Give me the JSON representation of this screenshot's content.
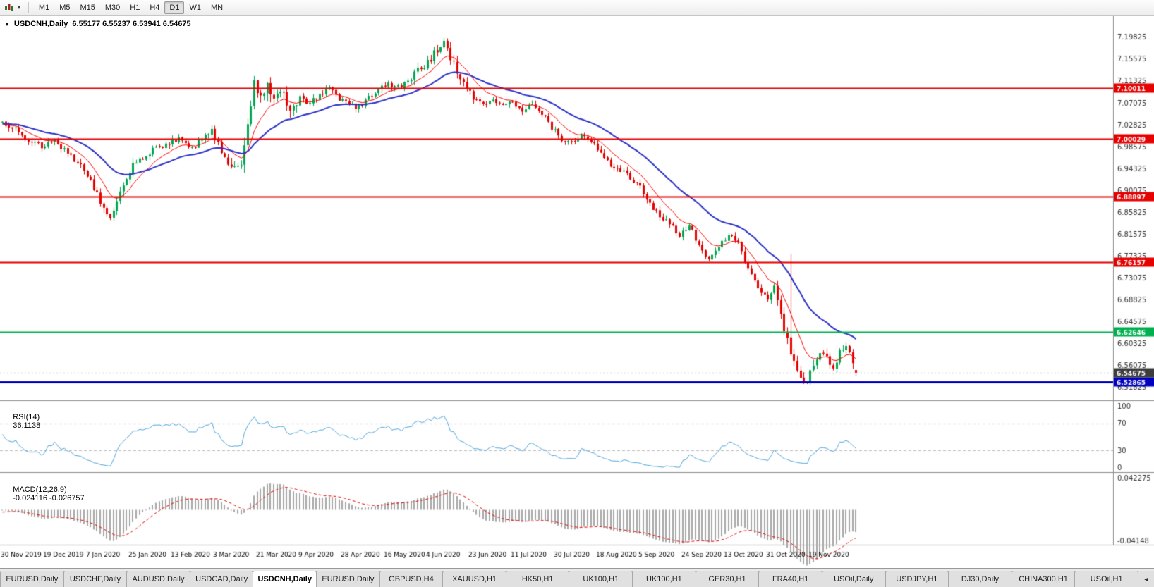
{
  "toolbar": {
    "timeframes": [
      "M1",
      "M5",
      "M15",
      "M30",
      "H1",
      "H4",
      "D1",
      "W1",
      "MN"
    ],
    "active_timeframe": "D1"
  },
  "chart": {
    "collapse_glyph": "▼",
    "title": "USDCNH,Daily",
    "ohlc_text": "6.55177 6.55237 6.53941 6.54675"
  },
  "indicator_labels": {
    "rsi_label": "RSI(14)",
    "rsi_value": "36.1138",
    "macd_label": "MACD(12,26,9)",
    "macd_values": "-0.024116 -0.026757"
  },
  "chart_data": {
    "type": "candlestick",
    "symbol": "USDCNH",
    "period": "Daily",
    "ohlc_current": {
      "open": 6.55177,
      "high": 6.55237,
      "low": 6.53941,
      "close": 6.54675
    },
    "current_price": 6.54675,
    "bars_visible": 262,
    "y_axis": {
      "min": 6.5,
      "max": 7.235,
      "ticks": [
        7.19825,
        7.15575,
        7.11325,
        7.07075,
        7.02825,
        6.98575,
        6.94325,
        6.90075,
        6.85825,
        6.81575,
        6.77325,
        6.73075,
        6.68825,
        6.64575,
        6.60325,
        6.56075,
        6.51825
      ]
    },
    "x_labels": [
      "30 Nov 2019",
      "19 Dec 2019",
      "7 Jan 2020",
      "25 Jan 2020",
      "13 Feb 2020",
      "3 Mar 2020",
      "21 Mar 2020",
      "9 Apr 2020",
      "28 Apr 2020",
      "16 May 2020",
      "4 Jun 2020",
      "23 Jun 2020",
      "11 Jul 2020",
      "30 Jul 2020",
      "18 Aug 2020",
      "5 Sep 2020",
      "24 Sep 2020",
      "13 Oct 2020",
      "31 Oct 2020",
      "19 Nov 2020"
    ],
    "x_label_step_bars": 13,
    "horizontal_lines": [
      {
        "price": 7.10011,
        "color": "#e60000",
        "width": 2,
        "role": "resistance"
      },
      {
        "price": 7.00029,
        "color": "#e60000",
        "width": 2,
        "role": "resistance"
      },
      {
        "price": 6.88897,
        "color": "#e60000",
        "width": 2,
        "role": "resistance"
      },
      {
        "price": 6.76157,
        "color": "#e60000",
        "width": 2,
        "role": "resistance"
      },
      {
        "price": 6.62646,
        "color": "#00b050",
        "width": 2,
        "role": "support"
      },
      {
        "price": 6.52865,
        "color": "#0000c0",
        "width": 3,
        "role": "support"
      }
    ],
    "colors": {
      "up": "#00a651",
      "down": "#e60000",
      "axis_text": "#333333",
      "current_tag_bg": "#3d3d3d",
      "rsi_line": "#4da6dd",
      "rsi_guide": "#bbbbbb",
      "macd_hist": "#a8a8a8",
      "macd_signal": "#e60000",
      "separator": "#8c8c8c"
    },
    "moving_averages": [
      {
        "period": 10,
        "color": "#ff0000",
        "width": 1
      },
      {
        "period": 30,
        "color": "#2b32c8",
        "width": 2
      }
    ],
    "indicators": {
      "rsi": {
        "period": 14,
        "current": 36.1138,
        "scale_labels": [
          100,
          70,
          30,
          0
        ],
        "guides": [
          70,
          30
        ]
      },
      "macd": {
        "fast": 12,
        "slow": 26,
        "signal": 9,
        "current_macd": -0.024116,
        "current_signal": -0.026757,
        "axis_labels": [
          "0.042275",
          "-0.04148"
        ],
        "y_max": 0.042275,
        "y_min": -0.04148
      }
    },
    "price_path_anchors": [
      [
        -60,
        7.078
      ],
      [
        -45,
        7.058
      ],
      [
        -30,
        7.034
      ],
      [
        -15,
        7.022
      ],
      [
        -5,
        7.028
      ],
      [
        0,
        7.032
      ],
      [
        4,
        7.022
      ],
      [
        8,
        6.998
      ],
      [
        12,
        6.988
      ],
      [
        16,
        7.0
      ],
      [
        20,
        6.972
      ],
      [
        24,
        6.946
      ],
      [
        28,
        6.906
      ],
      [
        31,
        6.862
      ],
      [
        33,
        6.852
      ],
      [
        36,
        6.9
      ],
      [
        39,
        6.94
      ],
      [
        42,
        6.962
      ],
      [
        46,
        6.978
      ],
      [
        50,
        6.992
      ],
      [
        54,
        7.002
      ],
      [
        58,
        6.982
      ],
      [
        61,
        7.004
      ],
      [
        64,
        7.016
      ],
      [
        67,
        6.978
      ],
      [
        70,
        6.942
      ],
      [
        73,
        6.958
      ],
      [
        75,
        7.03
      ],
      [
        77,
        7.11
      ],
      [
        79,
        7.082
      ],
      [
        81,
        7.104
      ],
      [
        83,
        7.072
      ],
      [
        85,
        7.092
      ],
      [
        88,
        7.062
      ],
      [
        91,
        7.082
      ],
      [
        94,
        7.068
      ],
      [
        97,
        7.088
      ],
      [
        100,
        7.096
      ],
      [
        103,
        7.078
      ],
      [
        106,
        7.068
      ],
      [
        109,
        7.062
      ],
      [
        112,
        7.08
      ],
      [
        115,
        7.098
      ],
      [
        118,
        7.108
      ],
      [
        121,
        7.1
      ],
      [
        124,
        7.118
      ],
      [
        127,
        7.134
      ],
      [
        130,
        7.15
      ],
      [
        133,
        7.172
      ],
      [
        135,
        7.192
      ],
      [
        137,
        7.158
      ],
      [
        139,
        7.13
      ],
      [
        141,
        7.108
      ],
      [
        144,
        7.082
      ],
      [
        147,
        7.068
      ],
      [
        150,
        7.082
      ],
      [
        153,
        7.062
      ],
      [
        156,
        7.072
      ],
      [
        159,
        7.058
      ],
      [
        162,
        7.068
      ],
      [
        165,
        7.052
      ],
      [
        168,
        7.022
      ],
      [
        171,
        7.002
      ],
      [
        174,
        6.992
      ],
      [
        177,
        7.006
      ],
      [
        180,
        6.996
      ],
      [
        183,
        6.972
      ],
      [
        186,
        6.952
      ],
      [
        189,
        6.942
      ],
      [
        192,
        6.922
      ],
      [
        195,
        6.905
      ],
      [
        198,
        6.872
      ],
      [
        201,
        6.852
      ],
      [
        204,
        6.838
      ],
      [
        207,
        6.812
      ],
      [
        210,
        6.835
      ],
      [
        213,
        6.792
      ],
      [
        216,
        6.768
      ],
      [
        219,
        6.788
      ],
      [
        222,
        6.818
      ],
      [
        225,
        6.795
      ],
      [
        228,
        6.752
      ],
      [
        230,
        6.725
      ],
      [
        232,
        6.705
      ],
      [
        234,
        6.692
      ],
      [
        236,
        6.715
      ],
      [
        238,
        6.66
      ],
      [
        240,
        6.608
      ],
      [
        242,
        6.57
      ],
      [
        244,
        6.545
      ],
      [
        246,
        6.528
      ],
      [
        248,
        6.562
      ],
      [
        250,
        6.59
      ],
      [
        252,
        6.575
      ],
      [
        254,
        6.56
      ],
      [
        256,
        6.585
      ],
      [
        258,
        6.595
      ],
      [
        260,
        6.57
      ],
      [
        261,
        6.547
      ]
    ],
    "spike": {
      "bar": 241,
      "high": 6.778
    }
  },
  "tabs": {
    "items": [
      "EURUSD,Daily",
      "USDCHF,Daily",
      "AUDUSD,Daily",
      "USDCAD,Daily",
      "USDCNH,Daily",
      "EURUSD,Daily",
      "GBPUSD,H4",
      "XAUUSD,H1",
      "HK50,H1",
      "UK100,H1",
      "UK100,H1",
      "GER30,H1",
      "FRA40,H1",
      "USOil,Daily",
      "USDJPY,H1",
      "DJ30,Daily",
      "CHINA300,H1",
      "USOil,H1"
    ],
    "active_index": 4,
    "scroll_glyph": "◄"
  }
}
